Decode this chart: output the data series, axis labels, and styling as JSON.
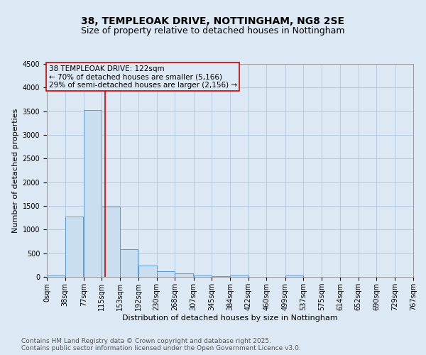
{
  "title": "38, TEMPLEOAK DRIVE, NOTTINGHAM, NG8 2SE",
  "subtitle": "Size of property relative to detached houses in Nottingham",
  "xlabel": "Distribution of detached houses by size in Nottingham",
  "ylabel": "Number of detached properties",
  "bar_left_edges": [
    0,
    38,
    77,
    115,
    153,
    192,
    230,
    268,
    307,
    345,
    384,
    422,
    460,
    499,
    537,
    575,
    614,
    652,
    690,
    729
  ],
  "bar_heights": [
    30,
    1280,
    3520,
    1480,
    580,
    240,
    120,
    70,
    35,
    20,
    30,
    5,
    5,
    35,
    2,
    2,
    2,
    2,
    2,
    2
  ],
  "bin_width": 38,
  "bar_color": "#c9dff0",
  "bar_edgecolor": "#5b9bd5",
  "grid_color": "#b0c4de",
  "bg_color": "#dce9f5",
  "property_line_x": 122,
  "property_line_color": "#cc0000",
  "annotation_line1": "38 TEMPLEOAK DRIVE: 122sqm",
  "annotation_line2": "← 70% of detached houses are smaller (5,166)",
  "annotation_line3": "29% of semi-detached houses are larger (2,156) →",
  "annotation_box_color": "#cc0000",
  "ylim": [
    0,
    4500
  ],
  "yticks": [
    0,
    500,
    1000,
    1500,
    2000,
    2500,
    3000,
    3500,
    4000,
    4500
  ],
  "xtick_labels": [
    "0sqm",
    "38sqm",
    "77sqm",
    "115sqm",
    "153sqm",
    "192sqm",
    "230sqm",
    "268sqm",
    "307sqm",
    "345sqm",
    "384sqm",
    "422sqm",
    "460sqm",
    "499sqm",
    "537sqm",
    "575sqm",
    "614sqm",
    "652sqm",
    "690sqm",
    "729sqm",
    "767sqm"
  ],
  "footer_text": "Contains HM Land Registry data © Crown copyright and database right 2025.\nContains public sector information licensed under the Open Government Licence v3.0.",
  "title_fontsize": 10,
  "subtitle_fontsize": 9,
  "axis_label_fontsize": 8,
  "tick_fontsize": 7,
  "annotation_fontsize": 7.5,
  "footer_fontsize": 6.5
}
